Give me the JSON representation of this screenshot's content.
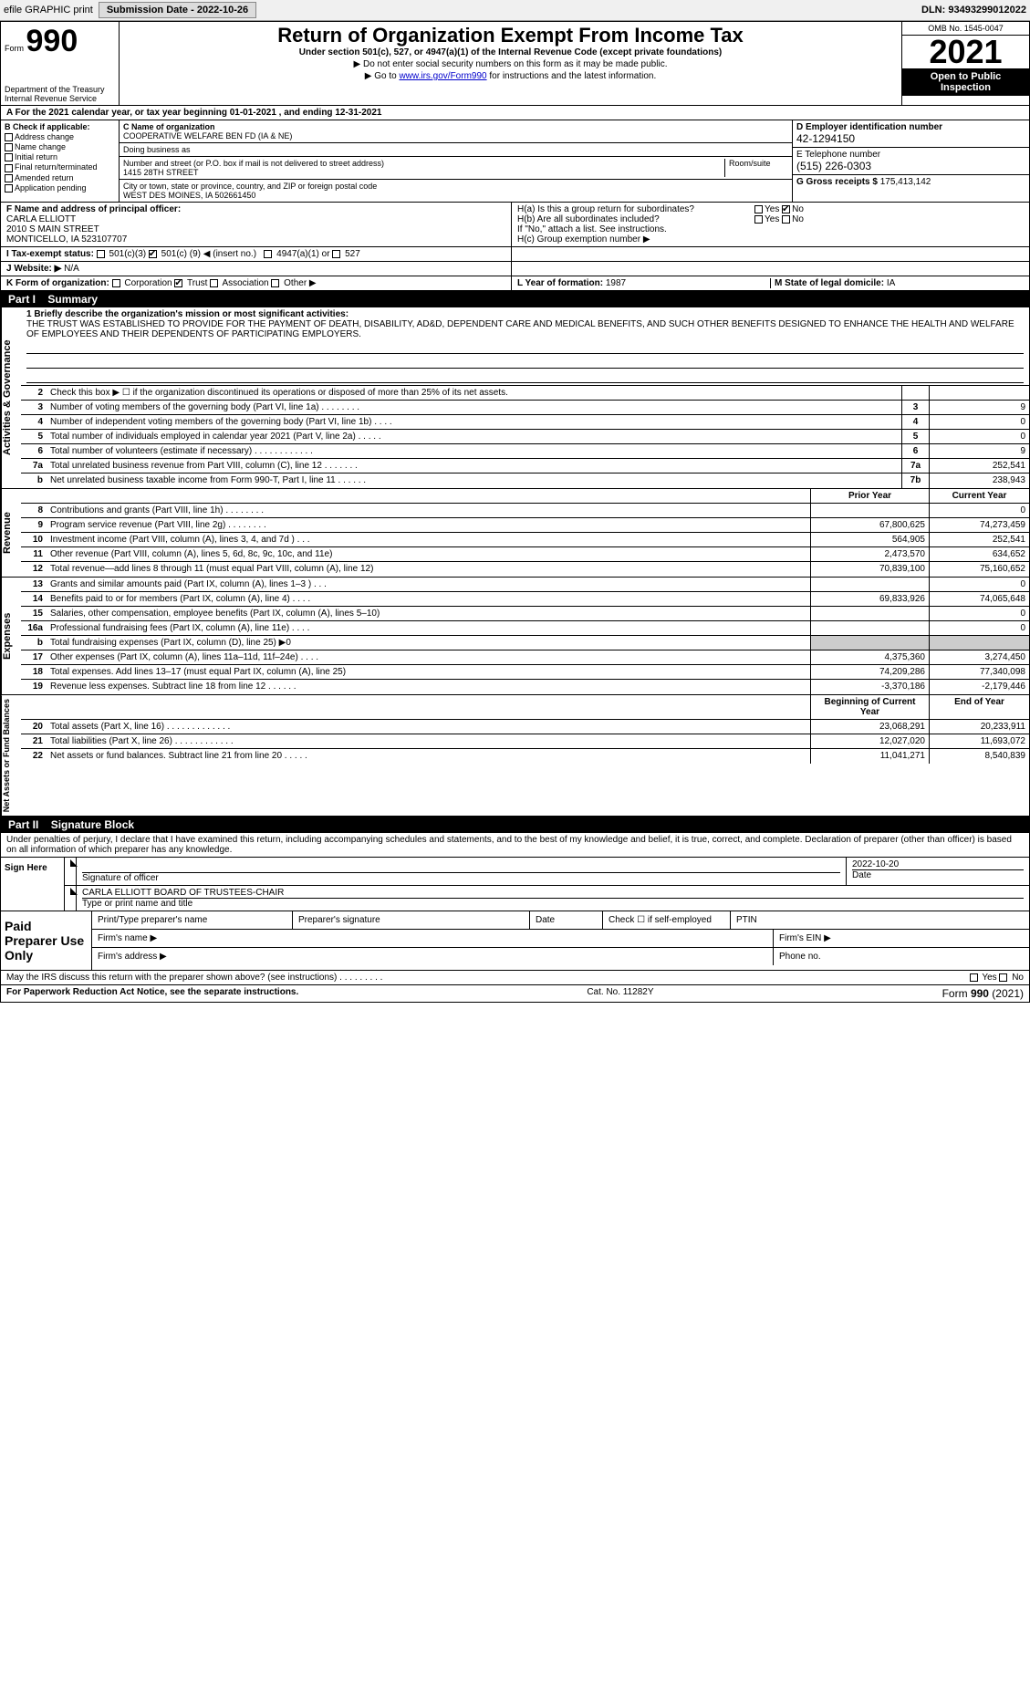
{
  "topbar": {
    "efile_label": "efile GRAPHIC print",
    "submission_label": "Submission Date - 2022-10-26",
    "dln_label": "DLN: 93493299012022"
  },
  "title_block": {
    "form_label": "Form",
    "form_num": "990",
    "main_title": "Return of Organization Exempt From Income Tax",
    "sub_title": "Under section 501(c), 527, or 4947(a)(1) of the Internal Revenue Code (except private foundations)",
    "ssn_line": "▶ Do not enter social security numbers on this form as it may be made public.",
    "goto_prefix": "▶ Go to ",
    "goto_link": "www.irs.gov/Form990",
    "goto_suffix": " for instructions and the latest information.",
    "dept": "Department of the Treasury",
    "irs": "Internal Revenue Service",
    "omb": "OMB No. 1545-0047",
    "year": "2021",
    "open_pub": "Open to Public Inspection"
  },
  "period_line": "A For the 2021 calendar year, or tax year beginning 01-01-2021   , and ending 12-31-2021",
  "col_b": {
    "header": "B Check if applicable:",
    "items": [
      "Address change",
      "Name change",
      "Initial return",
      "Final return/terminated",
      "Amended return",
      "Application pending"
    ]
  },
  "col_c": {
    "name_label": "C Name of organization",
    "name": "COOPERATIVE WELFARE BEN FD (IA & NE)",
    "dba_label": "Doing business as",
    "addr_label": "Number and street (or P.O. box if mail is not delivered to street address)",
    "room_label": "Room/suite",
    "addr": "1415 28TH STREET",
    "city_label": "City or town, state or province, country, and ZIP or foreign postal code",
    "city": "WEST DES MOINES, IA  502661450"
  },
  "col_d": {
    "ein_label": "D Employer identification number",
    "ein": "42-1294150",
    "phone_label": "E Telephone number",
    "phone": "(515) 226-0303",
    "gross_label": "G Gross receipts $",
    "gross": "175,413,142"
  },
  "f_block": {
    "label": "F Name and address of principal officer:",
    "name": "CARLA ELLIOTT",
    "addr1": "2010 S MAIN STREET",
    "addr2": "MONTICELLO, IA  523107707"
  },
  "h_block": {
    "ha": "H(a)  Is this a group return for subordinates?",
    "hb": "H(b)  Are all subordinates included?",
    "hb_note": "If \"No,\" attach a list. See instructions.",
    "hc": "H(c)  Group exemption number ▶",
    "yes": "Yes",
    "no": "No"
  },
  "i_line": {
    "label": "I   Tax-exempt status:",
    "c3": "501(c)(3)",
    "c_prefix": "501(c) (",
    "c_num": "9",
    "c_suffix": ") ◀ (insert no.)",
    "a1": "4947(a)(1) or",
    "s527": "527"
  },
  "j_line": {
    "label": "J   Website: ▶",
    "value": "N/A"
  },
  "k_line": {
    "label": "K Form of organization:",
    "corp": "Corporation",
    "trust": "Trust",
    "assoc": "Association",
    "other": "Other ▶"
  },
  "l_line": {
    "label": "L Year of formation:",
    "value": "1987"
  },
  "m_line": {
    "label": "M State of legal domicile:",
    "value": "IA"
  },
  "part1": {
    "label": "Part I",
    "title": "Summary"
  },
  "mission": {
    "q": "1  Briefly describe the organization's mission or most significant activities:",
    "text": "THE TRUST WAS ESTABLISHED TO PROVIDE FOR THE PAYMENT OF DEATH, DISABILITY, AD&D, DEPENDENT CARE AND MEDICAL BENEFITS, AND SUCH OTHER BENEFITS DESIGNED TO ENHANCE THE HEALTH AND WELFARE OF EMPLOYEES AND THEIR DEPENDENTS OF PARTICIPATING EMPLOYERS."
  },
  "governance": {
    "label": "Activities & Governance",
    "rows": [
      {
        "n": "2",
        "d": "Check this box ▶ ☐  if the organization discontinued its operations or disposed of more than 25% of its net assets.",
        "box": "",
        "v": ""
      },
      {
        "n": "3",
        "d": "Number of voting members of the governing body (Part VI, line 1a)   .    .    .    .    .    .    .    .",
        "box": "3",
        "v": "9"
      },
      {
        "n": "4",
        "d": "Number of independent voting members of the governing body (Part VI, line 1b)   .    .    .    .",
        "box": "4",
        "v": "0"
      },
      {
        "n": "5",
        "d": "Total number of individuals employed in calendar year 2021 (Part V, line 2a)   .    .    .    .    .",
        "box": "5",
        "v": "0"
      },
      {
        "n": "6",
        "d": "Total number of volunteers (estimate if necessary)   .    .    .    .    .    .    .    .    .    .    .    .",
        "box": "6",
        "v": "9"
      },
      {
        "n": "7a",
        "d": "Total unrelated business revenue from Part VIII, column (C), line 12   .    .    .    .    .    .    .",
        "box": "7a",
        "v": "252,541"
      },
      {
        "n": "b",
        "d": "Net unrelated business taxable income from Form 990-T, Part I, line 11   .    .    .    .    .    .",
        "box": "7b",
        "v": "238,943"
      }
    ]
  },
  "col_headers": {
    "py": "Prior Year",
    "cy": "Current Year"
  },
  "revenue": {
    "label": "Revenue",
    "rows": [
      {
        "n": "8",
        "d": "Contributions and grants (Part VIII, line 1h)   .    .    .    .    .    .    .    .",
        "py": "",
        "cy": "0"
      },
      {
        "n": "9",
        "d": "Program service revenue (Part VIII, line 2g)   .    .    .    .    .    .    .    .",
        "py": "67,800,625",
        "cy": "74,273,459"
      },
      {
        "n": "10",
        "d": "Investment income (Part VIII, column (A), lines 3, 4, and 7d )   .    .    .",
        "py": "564,905",
        "cy": "252,541"
      },
      {
        "n": "11",
        "d": "Other revenue (Part VIII, column (A), lines 5, 6d, 8c, 9c, 10c, and 11e)",
        "py": "2,473,570",
        "cy": "634,652"
      },
      {
        "n": "12",
        "d": "Total revenue—add lines 8 through 11 (must equal Part VIII, column (A), line 12)",
        "py": "70,839,100",
        "cy": "75,160,652"
      }
    ]
  },
  "expenses": {
    "label": "Expenses",
    "rows": [
      {
        "n": "13",
        "d": "Grants and similar amounts paid (Part IX, column (A), lines 1–3 )   .    .    .",
        "py": "",
        "cy": "0"
      },
      {
        "n": "14",
        "d": "Benefits paid to or for members (Part IX, column (A), line 4)   .    .    .    .",
        "py": "69,833,926",
        "cy": "74,065,648"
      },
      {
        "n": "15",
        "d": "Salaries, other compensation, employee benefits (Part IX, column (A), lines 5–10)",
        "py": "",
        "cy": "0"
      },
      {
        "n": "16a",
        "d": "Professional fundraising fees (Part IX, column (A), line 11e)   .    .    .    .",
        "py": "",
        "cy": "0"
      },
      {
        "n": "b",
        "d": "Total fundraising expenses (Part IX, column (D), line 25) ▶0",
        "py": "grey",
        "cy": "grey"
      },
      {
        "n": "17",
        "d": "Other expenses (Part IX, column (A), lines 11a–11d, 11f–24e)   .    .    .    .",
        "py": "4,375,360",
        "cy": "3,274,450"
      },
      {
        "n": "18",
        "d": "Total expenses. Add lines 13–17 (must equal Part IX, column (A), line 25)",
        "py": "74,209,286",
        "cy": "77,340,098"
      },
      {
        "n": "19",
        "d": "Revenue less expenses. Subtract line 18 from line 12   .    .    .    .    .    .",
        "py": "-3,370,186",
        "cy": "-2,179,446"
      }
    ]
  },
  "netassets": {
    "label": "Net Assets or Fund Balances",
    "headers": {
      "py": "Beginning of Current Year",
      "cy": "End of Year"
    },
    "rows": [
      {
        "n": "20",
        "d": "Total assets (Part X, line 16)   .    .    .    .    .    .    .    .    .    .    .    .    .",
        "py": "23,068,291",
        "cy": "20,233,911"
      },
      {
        "n": "21",
        "d": "Total liabilities (Part X, line 26)   .    .    .    .    .    .    .    .    .    .    .    .",
        "py": "12,027,020",
        "cy": "11,693,072"
      },
      {
        "n": "22",
        "d": "Net assets or fund balances. Subtract line 21 from line 20   .    .    .    .    .",
        "py": "11,041,271",
        "cy": "8,540,839"
      }
    ]
  },
  "part2": {
    "label": "Part II",
    "title": "Signature Block"
  },
  "penalties": "Under penalties of perjury, I declare that I have examined this return, including accompanying schedules and statements, and to the best of my knowledge and belief, it is true, correct, and complete. Declaration of preparer (other than officer) is based on all information of which preparer has any knowledge.",
  "sign": {
    "label": "Sign Here",
    "sig_label": "Signature of officer",
    "date_label": "Date",
    "date": "2022-10-20",
    "name": "CARLA ELLIOTT  BOARD OF TRUSTEES-CHAIR",
    "name_label": "Type or print name and title"
  },
  "preparer": {
    "label": "Paid Preparer Use Only",
    "print_name": "Print/Type preparer's name",
    "sig": "Preparer's signature",
    "date": "Date",
    "self_emp": "Check ☐ if self-employed",
    "ptin": "PTIN",
    "firm_name": "Firm's name   ▶",
    "firm_ein": "Firm's EIN ▶",
    "firm_addr": "Firm's address ▶",
    "phone": "Phone no."
  },
  "discuss": {
    "text": "May the IRS discuss this return with the preparer shown above? (see instructions)   .    .    .    .    .    .    .    .    .",
    "yes": "Yes",
    "no": "No"
  },
  "footer": {
    "left": "For Paperwork Reduction Act Notice, see the separate instructions.",
    "center": "Cat. No. 11282Y",
    "right_prefix": "Form ",
    "right_form": "990",
    "right_suffix": " (2021)"
  }
}
